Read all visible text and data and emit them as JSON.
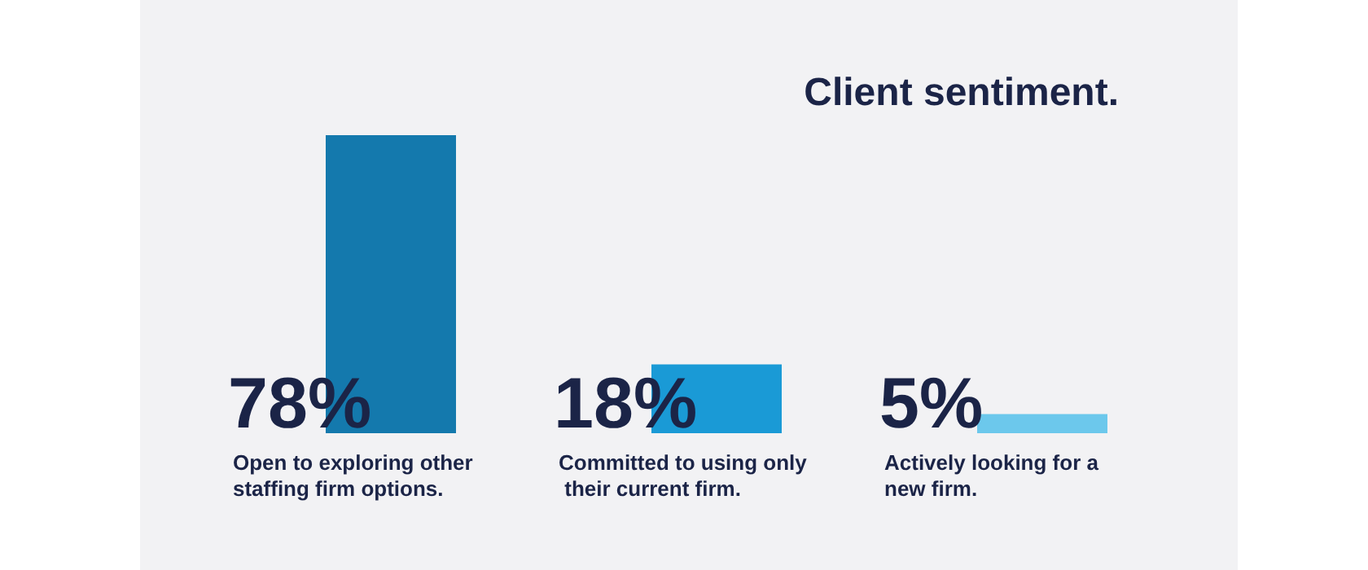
{
  "chart_data": {
    "type": "bar",
    "title": "Client sentiment.",
    "categories": [
      "Open to exploring other staffing firm options.",
      "Committed to using only their current firm.",
      "Actively looking for a new firm."
    ],
    "values": [
      78,
      18,
      5
    ],
    "colors": [
      "#1479ad",
      "#1a9ad6",
      "#6cc8ec"
    ],
    "value_labels": [
      "78%",
      "18%",
      "5%"
    ]
  }
}
